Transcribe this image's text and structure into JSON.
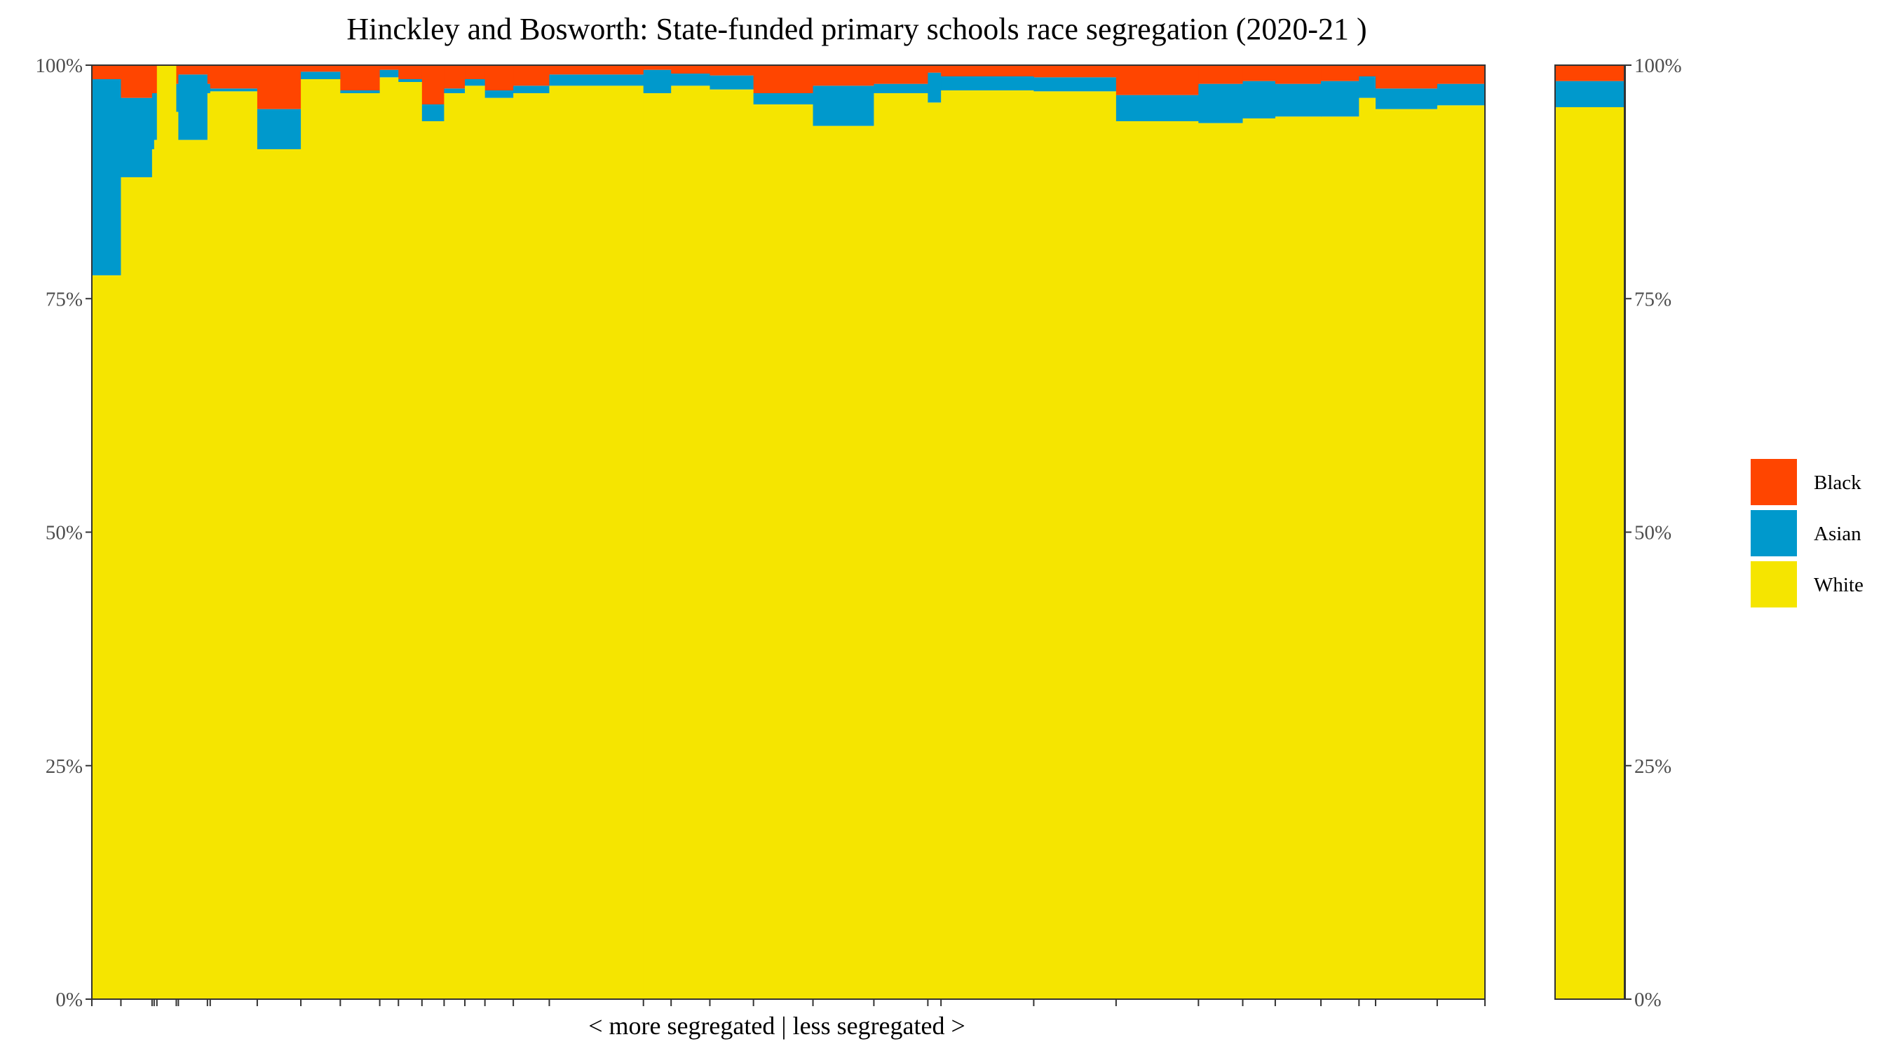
{
  "chart_data": {
    "type": "bar",
    "stacked": true,
    "variable_width": true,
    "title": "Hinckley and Bosworth: State-funded primary schools race segregation (2020-21 )",
    "xlabel": "< more segregated | less segregated >",
    "ylabel": "",
    "ylim": [
      0,
      100
    ],
    "y_ticks": [
      "0%",
      "25%",
      "50%",
      "75%",
      "100%"
    ],
    "y_axis_both_sides": true,
    "grid": false,
    "legend_position": "right",
    "series_order_bottom_to_top": [
      "White",
      "Asian",
      "Black"
    ],
    "colors": {
      "White": "#F5E500",
      "Asian": "#0099CC",
      "Black": "#FF4500",
      "Other": "#FFFFFF"
    },
    "legend": [
      {
        "name": "Black",
        "color": "#FF4500"
      },
      {
        "name": "Asian",
        "color": "#0099CC"
      },
      {
        "name": "White",
        "color": "#F5E500"
      }
    ],
    "schools": [
      {
        "w": 4.2,
        "white": 77.5,
        "asian": 21.0,
        "black": 1.5
      },
      {
        "w": 4.5,
        "white": 88.0,
        "asian": 8.5,
        "black": 3.5
      },
      {
        "w": 0.3,
        "white": 91.0,
        "asian": 6.0,
        "black": 3.0
      },
      {
        "w": 0.4,
        "white": 92.0,
        "asian": 5.0,
        "black": 3.0
      },
      {
        "w": 2.8,
        "white": 100.0,
        "asian": 0.0,
        "black": 0.0
      },
      {
        "w": 0.3,
        "white": 95.0,
        "asian": 3.0,
        "black": 2.0
      },
      {
        "w": 4.2,
        "white": 92.0,
        "asian": 7.0,
        "black": 1.0
      },
      {
        "w": 0.4,
        "white": 97.0,
        "asian": 1.0,
        "black": 2.0
      },
      {
        "w": 6.8,
        "white": 97.2,
        "asian": 0.3,
        "black": 2.5
      },
      {
        "w": 6.3,
        "white": 91.0,
        "asian": 4.3,
        "black": 4.7
      },
      {
        "w": 5.7,
        "white": 98.5,
        "asian": 0.8,
        "black": 0.7
      },
      {
        "w": 5.7,
        "white": 97.0,
        "asian": 0.3,
        "black": 2.7
      },
      {
        "w": 2.7,
        "white": 98.7,
        "asian": 0.8,
        "black": 0.5
      },
      {
        "w": 3.4,
        "white": 98.2,
        "asian": 0.3,
        "black": 1.5
      },
      {
        "w": 3.2,
        "white": 94.0,
        "asian": 1.8,
        "black": 4.2
      },
      {
        "w": 3.0,
        "white": 97.0,
        "asian": 0.5,
        "black": 2.5
      },
      {
        "w": 2.9,
        "white": 97.8,
        "asian": 0.7,
        "black": 1.5
      },
      {
        "w": 4.1,
        "white": 96.5,
        "asian": 0.8,
        "black": 2.7
      },
      {
        "w": 5.2,
        "white": 97.0,
        "asian": 0.8,
        "black": 2.2
      },
      {
        "w": 13.6,
        "white": 97.8,
        "asian": 1.2,
        "black": 1.0
      },
      {
        "w": 4.0,
        "white": 97.0,
        "asian": 2.5,
        "black": 0.5
      },
      {
        "w": 5.6,
        "white": 97.8,
        "asian": 1.3,
        "black": 0.9
      },
      {
        "w": 6.3,
        "white": 97.4,
        "asian": 1.5,
        "black": 1.1
      },
      {
        "w": 8.6,
        "white": 95.8,
        "asian": 1.2,
        "black": 3.0
      },
      {
        "w": 8.8,
        "white": 93.5,
        "asian": 4.3,
        "black": 2.2
      },
      {
        "w": 7.8,
        "white": 97.0,
        "asian": 1.0,
        "black": 2.0
      },
      {
        "w": 1.9,
        "white": 96.0,
        "asian": 3.2,
        "black": 0.8
      },
      {
        "w": 13.4,
        "white": 97.3,
        "asian": 1.5,
        "black": 1.2
      },
      {
        "w": 11.9,
        "white": 97.2,
        "asian": 1.5,
        "black": 1.3
      },
      {
        "w": 11.9,
        "white": 94.0,
        "asian": 2.8,
        "black": 3.2
      },
      {
        "w": 6.4,
        "white": 93.8,
        "asian": 4.2,
        "black": 2.0
      },
      {
        "w": 4.7,
        "white": 94.3,
        "asian": 4.0,
        "black": 1.7
      },
      {
        "w": 6.6,
        "white": 94.5,
        "asian": 3.5,
        "black": 2.0
      },
      {
        "w": 5.5,
        "white": 94.5,
        "asian": 3.8,
        "black": 1.7
      },
      {
        "w": 2.4,
        "white": 96.5,
        "asian": 2.3,
        "black": 1.2
      },
      {
        "w": 8.9,
        "white": 95.3,
        "asian": 2.2,
        "black": 2.5
      },
      {
        "w": 6.9,
        "white": 95.7,
        "asian": 2.3,
        "black": 2.0
      }
    ],
    "overall": {
      "white": 95.5,
      "asian": 2.8,
      "black": 1.7
    }
  }
}
